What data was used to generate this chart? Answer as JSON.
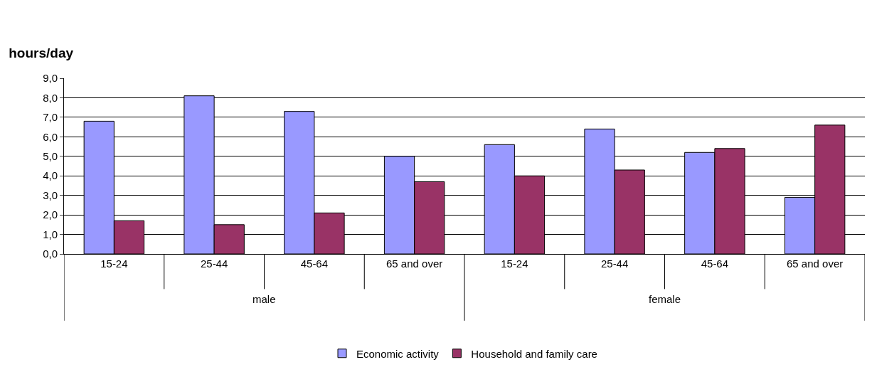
{
  "chart_data": {
    "type": "bar",
    "title": "hours/day",
    "categories": [
      "15-24",
      "25-44",
      "45-64",
      "65 and over",
      "15-24",
      "25-44",
      "45-64",
      "65 and over"
    ],
    "series": [
      {
        "name": "Economic activity",
        "color": "#9999ff",
        "values": [
          6.8,
          8.1,
          7.3,
          5.0,
          5.6,
          6.4,
          5.2,
          2.9
        ]
      },
      {
        "name": "Household and family care",
        "color": "#993366",
        "values": [
          1.7,
          1.5,
          2.1,
          3.7,
          4.0,
          4.3,
          5.4,
          6.6
        ]
      }
    ],
    "annotations": [
      "male",
      "female"
    ],
    "ylim": [
      0,
      9
    ],
    "yticks": [
      {
        "value": 0,
        "label": "0,0"
      },
      {
        "value": 1,
        "label": "1,0"
      },
      {
        "value": 2,
        "label": "2,0"
      },
      {
        "value": 3,
        "label": "3,0"
      },
      {
        "value": 4,
        "label": "4,0"
      },
      {
        "value": 5,
        "label": "5,0"
      },
      {
        "value": 6,
        "label": "6,0"
      },
      {
        "value": 7,
        "label": "7,0"
      },
      {
        "value": 8,
        "label": "8,0"
      },
      {
        "value": 9,
        "label": "9,0"
      }
    ],
    "grid": "y",
    "legend": "bottom"
  }
}
